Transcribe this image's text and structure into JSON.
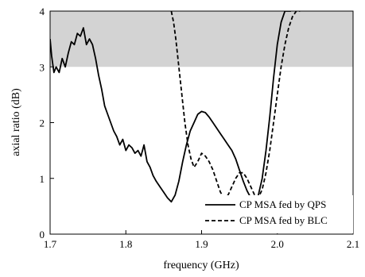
{
  "chart_data": {
    "type": "line",
    "title": "",
    "xlabel": "frequency (GHz)",
    "ylabel": "axial ratio (dB)",
    "xlim": [
      1.7,
      2.1
    ],
    "ylim": [
      0,
      4
    ],
    "x_ticks": [
      1.7,
      1.8,
      1.9,
      2.0,
      2.1
    ],
    "x_tick_labels": [
      "1.7",
      "1.8",
      "1.9",
      "2.0",
      "2.1"
    ],
    "y_ticks": [
      0,
      1,
      2,
      3,
      4
    ],
    "y_tick_labels": [
      "0",
      "1",
      "2",
      "3",
      "4"
    ],
    "grid": false,
    "legend_position": "bottom-right",
    "shaded_region": {
      "y_from": 3,
      "y_to": 4,
      "color": "#d3d3d3"
    },
    "series": [
      {
        "name": "CP MSA fed by QPS",
        "style": "solid",
        "color": "#000000",
        "x": [
          1.7,
          1.702,
          1.705,
          1.708,
          1.712,
          1.716,
          1.72,
          1.724,
          1.728,
          1.732,
          1.736,
          1.74,
          1.744,
          1.748,
          1.752,
          1.756,
          1.76,
          1.764,
          1.768,
          1.772,
          1.776,
          1.78,
          1.784,
          1.788,
          1.792,
          1.796,
          1.8,
          1.804,
          1.808,
          1.812,
          1.816,
          1.82,
          1.824,
          1.828,
          1.832,
          1.836,
          1.84,
          1.845,
          1.85,
          1.855,
          1.86,
          1.865,
          1.87,
          1.875,
          1.88,
          1.885,
          1.89,
          1.895,
          1.9,
          1.905,
          1.91,
          1.915,
          1.92,
          1.925,
          1.93,
          1.935,
          1.94,
          1.945,
          1.95,
          1.955,
          1.96,
          1.965,
          1.97,
          1.975,
          1.98,
          1.985,
          1.99,
          1.995,
          2.0,
          2.005,
          2.01,
          2.015,
          2.018
        ],
        "y": [
          3.5,
          3.2,
          2.9,
          3.0,
          2.9,
          3.15,
          3.0,
          3.25,
          3.45,
          3.4,
          3.6,
          3.55,
          3.7,
          3.4,
          3.5,
          3.4,
          3.15,
          2.85,
          2.6,
          2.3,
          2.15,
          2.0,
          1.85,
          1.75,
          1.6,
          1.7,
          1.5,
          1.6,
          1.55,
          1.45,
          1.5,
          1.4,
          1.6,
          1.3,
          1.2,
          1.05,
          0.95,
          0.85,
          0.75,
          0.65,
          0.58,
          0.7,
          0.95,
          1.3,
          1.6,
          1.85,
          2.0,
          2.15,
          2.2,
          2.18,
          2.1,
          2.0,
          1.9,
          1.8,
          1.7,
          1.6,
          1.5,
          1.35,
          1.15,
          0.95,
          0.78,
          0.65,
          0.58,
          0.7,
          1.0,
          1.5,
          2.1,
          2.8,
          3.4,
          3.8,
          4.0,
          4.0,
          4.0
        ]
      },
      {
        "name": "CP MSA fed by BLC",
        "style": "dashed",
        "color": "#000000",
        "x": [
          1.86,
          1.863,
          1.866,
          1.87,
          1.874,
          1.878,
          1.882,
          1.886,
          1.89,
          1.895,
          1.9,
          1.905,
          1.91,
          1.915,
          1.92,
          1.925,
          1.93,
          1.935,
          1.94,
          1.945,
          1.95,
          1.955,
          1.96,
          1.965,
          1.97,
          1.975,
          1.98,
          1.985,
          1.99,
          1.995,
          2.0,
          2.005,
          2.01,
          2.015,
          2.02,
          2.025,
          2.03
        ],
        "y": [
          4.0,
          3.8,
          3.5,
          3.0,
          2.5,
          2.0,
          1.6,
          1.35,
          1.2,
          1.3,
          1.45,
          1.4,
          1.3,
          1.15,
          0.95,
          0.75,
          0.65,
          0.7,
          0.85,
          1.0,
          1.1,
          1.1,
          1.0,
          0.85,
          0.7,
          0.65,
          0.8,
          1.1,
          1.5,
          2.0,
          2.5,
          3.0,
          3.4,
          3.7,
          3.9,
          4.0,
          4.0
        ]
      }
    ]
  }
}
